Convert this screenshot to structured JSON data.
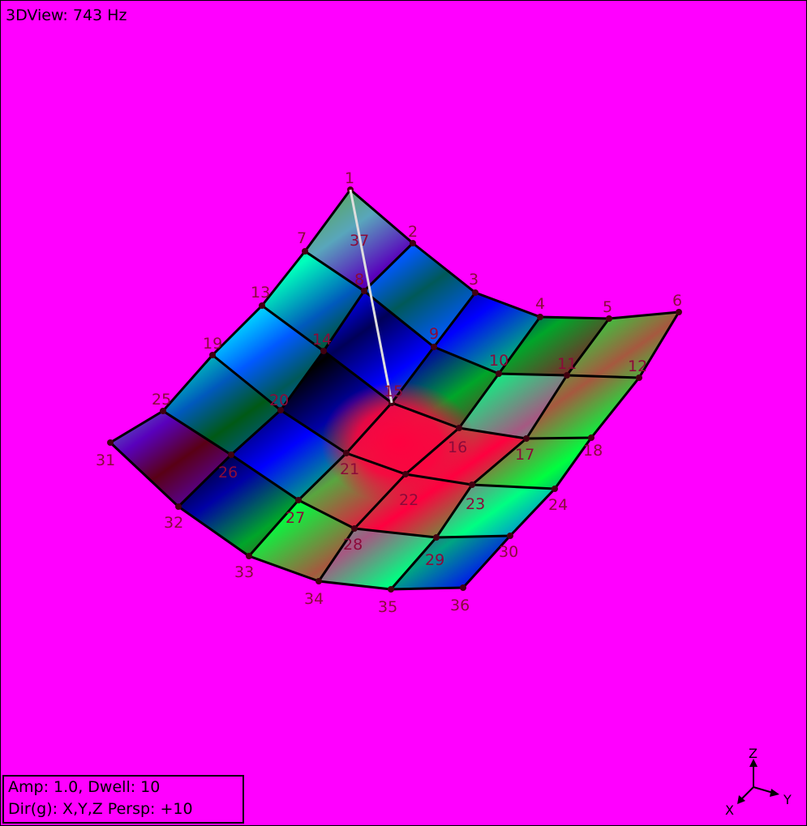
{
  "view": {
    "title": "3DView: 743 Hz",
    "background_color": "#ff00ff",
    "node_label_color": "#8b0a3a",
    "mesh_line_color": "#000000",
    "mode_line_color": "#dddddd"
  },
  "mesh": {
    "rows": 6,
    "cols": 6,
    "node_labels": [
      "1",
      "2",
      "3",
      "4",
      "5",
      "6",
      "7",
      "8",
      "9",
      "10",
      "11",
      "12",
      "13",
      "14",
      "15",
      "16",
      "17",
      "18",
      "19",
      "20",
      "21",
      "22",
      "23",
      "24",
      "25",
      "26",
      "27",
      "28",
      "29",
      "30",
      "31",
      "32",
      "33",
      "34",
      "35",
      "36"
    ],
    "extra_labels": [
      "37"
    ],
    "highlight_node": "15",
    "shading_colors": [
      "#ff0040",
      "#00ff40",
      "#00ffff",
      "#0000ff",
      "#000000"
    ]
  },
  "status": {
    "line1": "Amp: 1.0,  Dwell: 10",
    "line2": "Dir(g): X,Y,Z Persp: +10"
  },
  "axis_triad": {
    "z_label": "Z",
    "y_label": "Y",
    "x_label": "X",
    "icon": "axis-triad-icon"
  }
}
